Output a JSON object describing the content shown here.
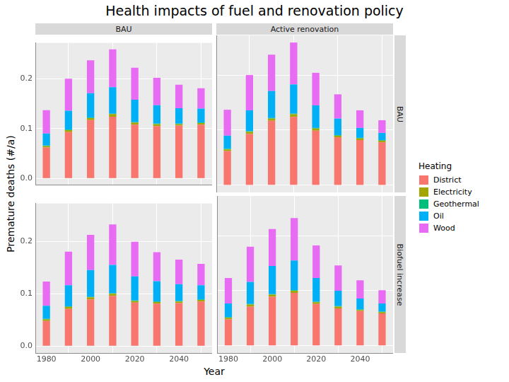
{
  "title": "Health impacts of fuel and renovation policy",
  "x_label": "Year",
  "y_label": "Premature deaths (#/a)",
  "legend_title": "Heating",
  "col_facets": [
    "BAU",
    "Active renovation"
  ],
  "row_facets": [
    "BAU",
    "Biofuel increase"
  ],
  "chart_data": [
    {
      "type": "bar",
      "stacked": true,
      "grid": true,
      "legend": "right",
      "column": "BAU",
      "row": "BAU",
      "x": [
        1980,
        1990,
        2000,
        2010,
        2020,
        2030,
        2040,
        2050
      ],
      "xlim": [
        1975,
        2055
      ],
      "xticks": [
        1980,
        2000,
        2020,
        2040
      ],
      "ylim": [
        -0.013,
        0.272
      ],
      "yticks": [
        {
          "value": 0,
          "label": "0.0"
        },
        {
          "value": 0.1,
          "label": "0.1"
        },
        {
          "value": 0.2,
          "label": "0.2"
        }
      ],
      "series": [
        {
          "name": "District",
          "color": "#F8766D",
          "values": [
            0.062,
            0.093,
            0.117,
            0.124,
            0.108,
            0.105,
            0.106,
            0.108
          ]
        },
        {
          "name": "Electricity",
          "color": "#A3A500",
          "values": [
            0.003,
            0.004,
            0.004,
            0.005,
            0.004,
            0.004,
            0.003,
            0.003
          ]
        },
        {
          "name": "Geothermal",
          "color": "#00BF7D",
          "values": [
            0.001,
            0.001,
            0.001,
            0.001,
            0.001,
            0.001,
            0.001,
            0.001
          ]
        },
        {
          "name": "Oil",
          "color": "#00B0F6",
          "values": [
            0.024,
            0.038,
            0.049,
            0.053,
            0.045,
            0.037,
            0.031,
            0.028
          ]
        },
        {
          "name": "Wood",
          "color": "#E76BF3",
          "values": [
            0.047,
            0.064,
            0.066,
            0.076,
            0.064,
            0.055,
            0.047,
            0.041
          ]
        }
      ]
    },
    {
      "type": "bar",
      "stacked": true,
      "grid": true,
      "legend": "right",
      "column": "Active renovation",
      "row": "BAU",
      "x": [
        1980,
        1990,
        2000,
        2010,
        2020,
        2030,
        2040,
        2050
      ],
      "xlim": [
        1975,
        2055
      ],
      "xticks": [
        1980,
        2000,
        2020,
        2040
      ],
      "ylim": [
        -0.013,
        0.272
      ],
      "yticks": [
        {
          "value": 0,
          "label": "0.0"
        },
        {
          "value": 0.1,
          "label": "0.1"
        },
        {
          "value": 0.2,
          "label": "0.2"
        }
      ],
      "series": [
        {
          "name": "District",
          "color": "#F8766D",
          "values": [
            0.062,
            0.093,
            0.117,
            0.124,
            0.099,
            0.087,
            0.082,
            0.078
          ]
        },
        {
          "name": "Electricity",
          "color": "#A3A500",
          "values": [
            0.003,
            0.004,
            0.004,
            0.005,
            0.004,
            0.003,
            0.003,
            0.003
          ]
        },
        {
          "name": "Geothermal",
          "color": "#00BF7D",
          "values": [
            0.001,
            0.001,
            0.001,
            0.001,
            0.001,
            0.001,
            0.001,
            0.001
          ]
        },
        {
          "name": "Oil",
          "color": "#00B0F6",
          "values": [
            0.024,
            0.038,
            0.049,
            0.053,
            0.041,
            0.03,
            0.018,
            0.013
          ]
        },
        {
          "name": "Wood",
          "color": "#E76BF3",
          "values": [
            0.047,
            0.064,
            0.066,
            0.076,
            0.059,
            0.044,
            0.032,
            0.023
          ]
        }
      ]
    },
    {
      "type": "bar",
      "stacked": true,
      "grid": true,
      "legend": "right",
      "column": "BAU",
      "row": "Biofuel increase",
      "x": [
        1980,
        1990,
        2000,
        2010,
        2020,
        2030,
        2040,
        2050
      ],
      "xlim": [
        1975,
        2055
      ],
      "xticks": [
        1980,
        2000,
        2020,
        2040
      ],
      "ylim": [
        -0.013,
        0.272
      ],
      "yticks": [
        {
          "value": 0,
          "label": "0.0"
        },
        {
          "value": 0.1,
          "label": "0.1"
        },
        {
          "value": 0.2,
          "label": "0.2"
        }
      ],
      "series": [
        {
          "name": "District",
          "color": "#F8766D",
          "values": [
            0.048,
            0.071,
            0.089,
            0.096,
            0.083,
            0.081,
            0.082,
            0.085
          ]
        },
        {
          "name": "Electricity",
          "color": "#A3A500",
          "values": [
            0.003,
            0.004,
            0.004,
            0.004,
            0.003,
            0.003,
            0.003,
            0.003
          ]
        },
        {
          "name": "Geothermal",
          "color": "#00BF7D",
          "values": [
            0.001,
            0.001,
            0.001,
            0.001,
            0.001,
            0.001,
            0.001,
            0.001
          ]
        },
        {
          "name": "Oil",
          "color": "#00B0F6",
          "values": [
            0.025,
            0.04,
            0.051,
            0.054,
            0.046,
            0.039,
            0.032,
            0.027
          ]
        },
        {
          "name": "Wood",
          "color": "#E76BF3",
          "values": [
            0.046,
            0.064,
            0.067,
            0.077,
            0.066,
            0.055,
            0.047,
            0.041
          ]
        }
      ]
    },
    {
      "type": "bar",
      "stacked": true,
      "grid": true,
      "legend": "right",
      "column": "Active renovation",
      "row": "Biofuel increase",
      "x": [
        1980,
        1990,
        2000,
        2010,
        2020,
        2030,
        2040,
        2050
      ],
      "xlim": [
        1975,
        2055
      ],
      "xticks": [
        1980,
        2000,
        2020,
        2040
      ],
      "ylim": [
        -0.013,
        0.272
      ],
      "yticks": [
        {
          "value": 0,
          "label": "0.0"
        },
        {
          "value": 0.1,
          "label": "0.1"
        },
        {
          "value": 0.2,
          "label": "0.2"
        }
      ],
      "series": [
        {
          "name": "District",
          "color": "#F8766D",
          "values": [
            0.048,
            0.071,
            0.089,
            0.096,
            0.076,
            0.068,
            0.063,
            0.059
          ]
        },
        {
          "name": "Electricity",
          "color": "#A3A500",
          "values": [
            0.003,
            0.004,
            0.004,
            0.004,
            0.003,
            0.003,
            0.002,
            0.002
          ]
        },
        {
          "name": "Geothermal",
          "color": "#00BF7D",
          "values": [
            0.001,
            0.001,
            0.001,
            0.001,
            0.001,
            0.001,
            0.001,
            0.001
          ]
        },
        {
          "name": "Oil",
          "color": "#00B0F6",
          "values": [
            0.025,
            0.04,
            0.051,
            0.054,
            0.043,
            0.028,
            0.02,
            0.015
          ]
        },
        {
          "name": "Wood",
          "color": "#E76BF3",
          "values": [
            0.046,
            0.064,
            0.067,
            0.077,
            0.059,
            0.046,
            0.033,
            0.024
          ]
        }
      ]
    }
  ]
}
